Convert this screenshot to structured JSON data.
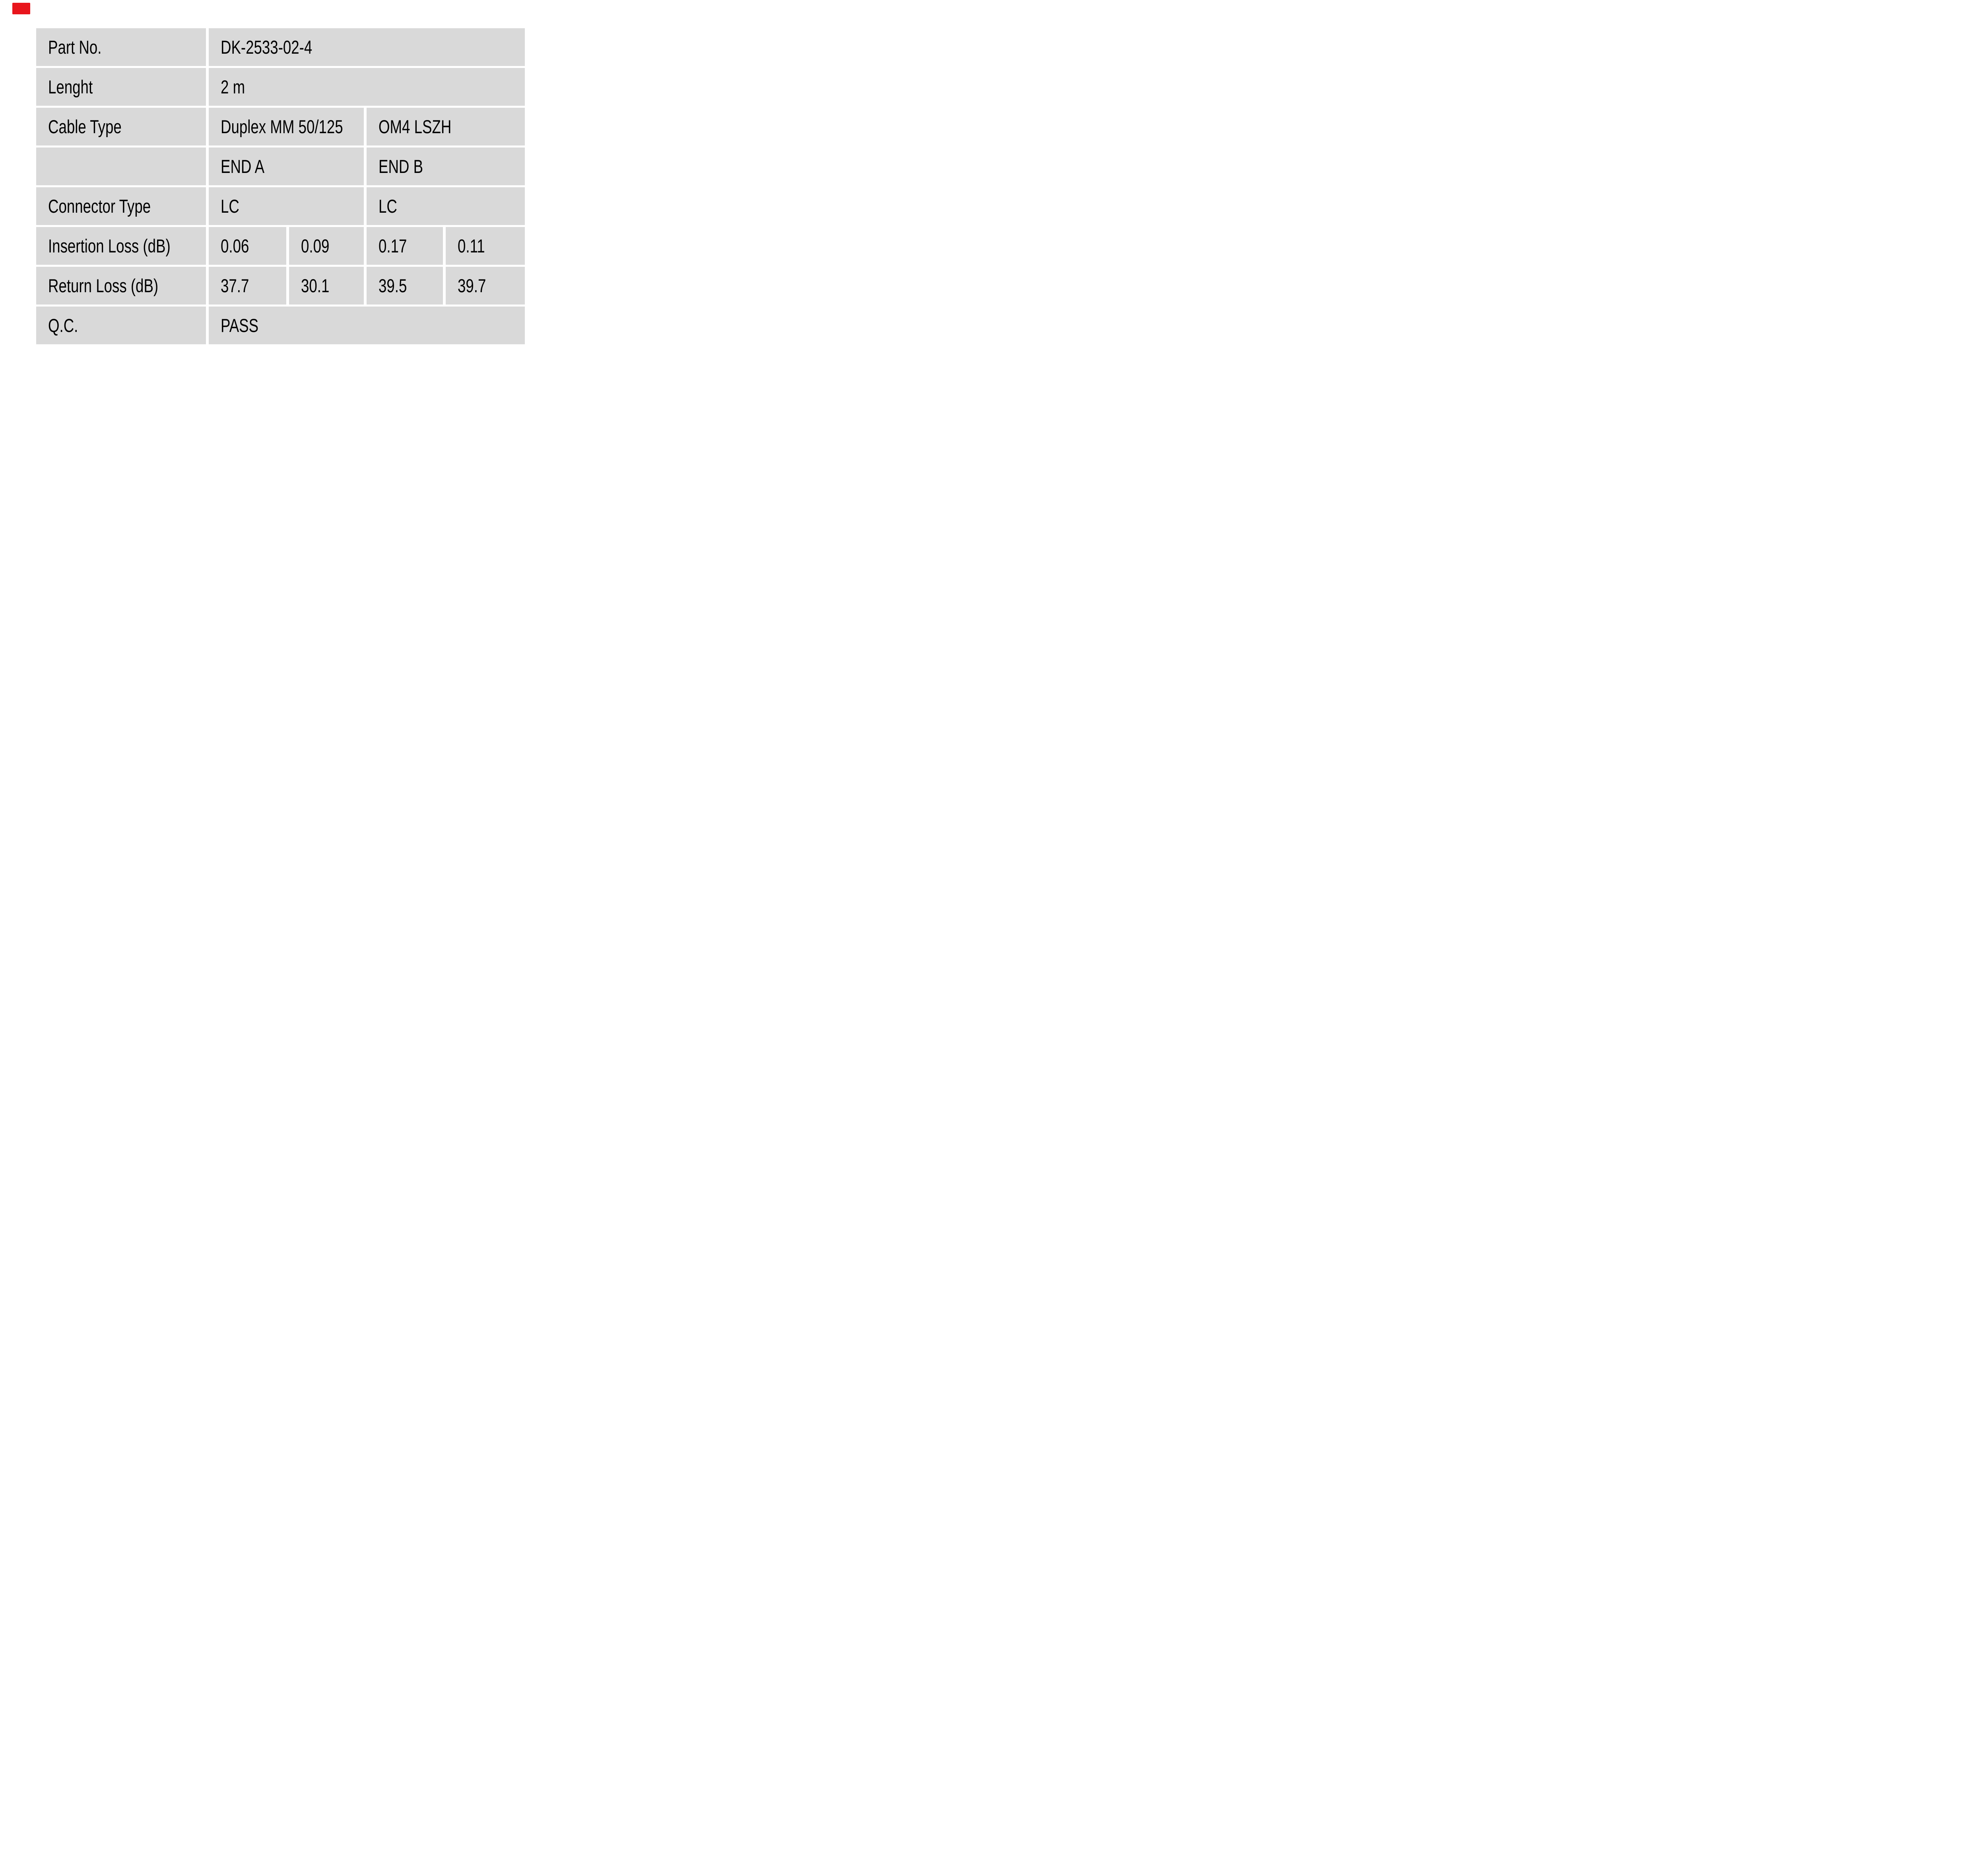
{
  "colors": {
    "page_background": "#ffffff",
    "cell_background": "#d9d9d9",
    "text": "#000000",
    "marker_red": "#e8151c"
  },
  "table": {
    "rows": [
      {
        "label": "Part No.",
        "cells": [
          {
            "text": "DK-2533-02-4"
          }
        ]
      },
      {
        "label": "Lenght",
        "cells": [
          {
            "text": "2 m"
          }
        ]
      },
      {
        "label": "Cable Type",
        "cells": [
          {
            "text": "Duplex MM 50/125"
          },
          {
            "text": "OM4 LSZH"
          }
        ]
      },
      {
        "label": "",
        "cells": [
          {
            "text": "END A"
          },
          {
            "text": "END B"
          }
        ]
      },
      {
        "label": "Connector Type",
        "cells": [
          {
            "text": "LC"
          },
          {
            "text": "LC"
          }
        ]
      },
      {
        "label": "Insertion Loss (dB)",
        "cells": [
          {
            "text": "0.06"
          },
          {
            "text": "0.09"
          },
          {
            "text": "0.17"
          },
          {
            "text": "0.11"
          }
        ]
      },
      {
        "label": "Return Loss (dB)",
        "cells": [
          {
            "text": "37.7"
          },
          {
            "text": "30.1"
          },
          {
            "text": "39.5"
          },
          {
            "text": "39.7"
          }
        ]
      },
      {
        "label": "Q.C.",
        "cells": [
          {
            "text": "PASS"
          }
        ]
      }
    ]
  }
}
